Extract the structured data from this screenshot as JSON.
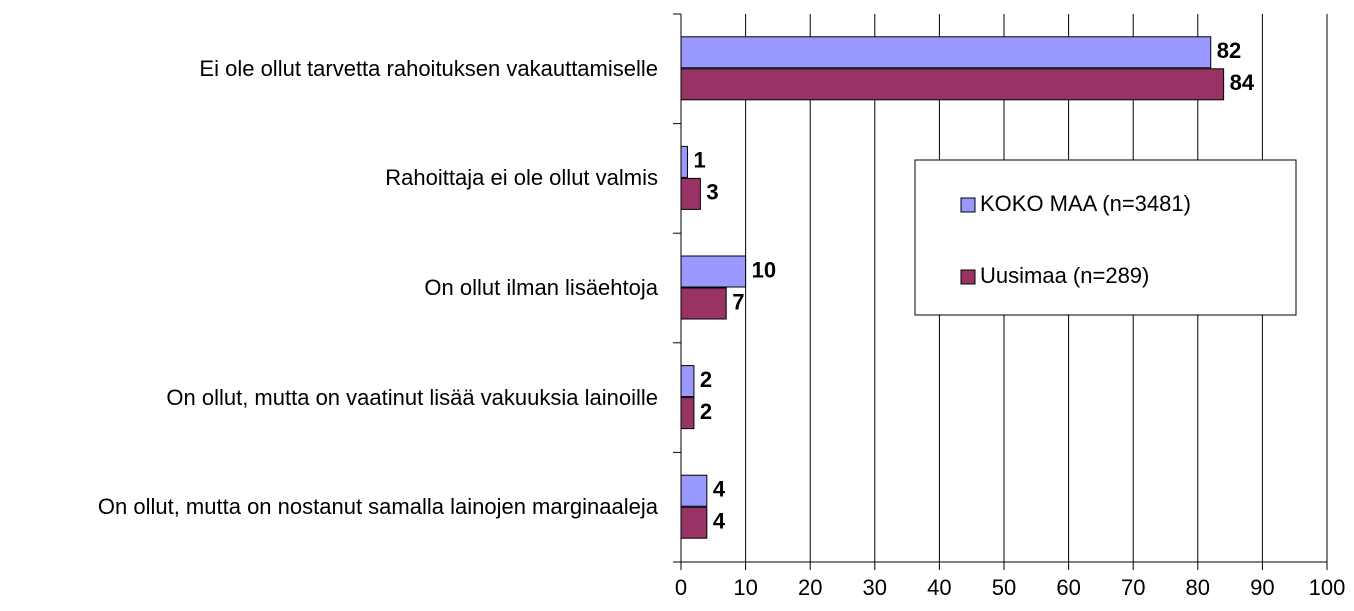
{
  "chart_data": {
    "type": "bar",
    "orientation": "horizontal",
    "categories": [
      "Ei ole ollut tarvetta rahoituksen vakauttamiselle",
      "Rahoittaja ei ole ollut valmis",
      "On ollut ilman lisäehtoja",
      "On ollut, mutta on vaatinut lisää vakuuksia lainoille",
      "On ollut, mutta on nostanut samalla lainojen marginaaleja"
    ],
    "series": [
      {
        "name": "KOKO MAA (n=3481)",
        "color": "#9999ff",
        "values": [
          82,
          1,
          10,
          2,
          4
        ]
      },
      {
        "name": "Uusimaa (n=289)",
        "color": "#993366",
        "values": [
          84,
          3,
          7,
          2,
          4
        ]
      }
    ],
    "xlim": [
      0,
      100
    ],
    "xticks": [
      0,
      10,
      20,
      30,
      40,
      50,
      60,
      70,
      80,
      90,
      100
    ],
    "grid": true,
    "legend": "right"
  }
}
